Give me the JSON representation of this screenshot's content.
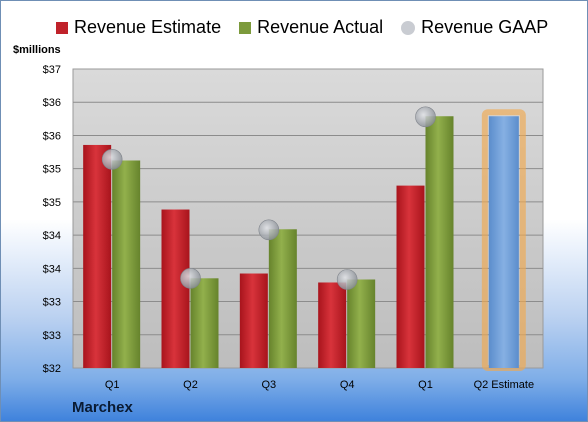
{
  "chart_data": {
    "type": "bar",
    "ylabel": "$millions",
    "company": "Marchex",
    "categories": [
      "Q1",
      "Q2",
      "Q3",
      "Q4",
      "Q1",
      "Q2 Estimate"
    ],
    "ylim": [
      32,
      37
    ],
    "yticks": [
      "$32",
      "$33",
      "$33",
      "$34",
      "$34",
      "$35",
      "$35",
      "$36",
      "$36",
      "$37"
    ],
    "series": [
      {
        "name": "Revenue Estimate",
        "color": "#c0222a",
        "values": [
          35.73,
          34.65,
          33.58,
          33.43,
          35.05,
          null
        ]
      },
      {
        "name": "Revenue Actual",
        "color": "#7c9a3c",
        "values": [
          35.47,
          33.5,
          34.32,
          33.48,
          36.21,
          null
        ]
      },
      {
        "name": "Revenue GAAP",
        "color": "#b4b8bf",
        "marker": "circle",
        "values": [
          35.49,
          33.5,
          34.31,
          33.48,
          36.2,
          null
        ]
      },
      {
        "name": "Q2 Estimate",
        "color": "#6f9fd8",
        "highlight": "#f0a950",
        "values": [
          null,
          null,
          null,
          null,
          null,
          36.21
        ]
      }
    ],
    "legend": [
      "Revenue Estimate",
      "Revenue Actual",
      "Revenue GAAP"
    ],
    "legend_position": "top",
    "grid": true
  }
}
